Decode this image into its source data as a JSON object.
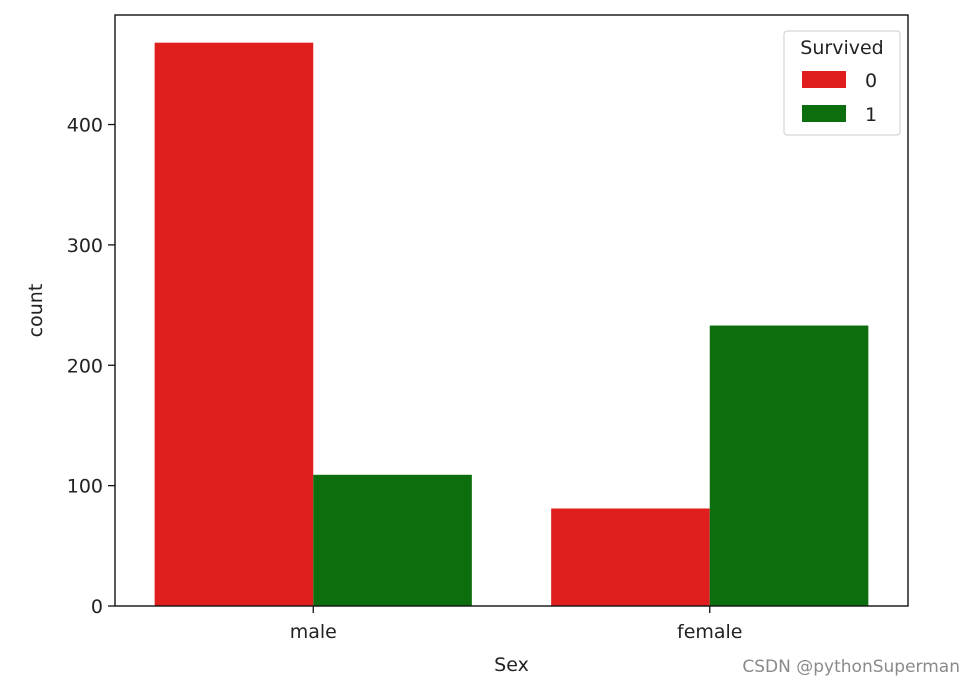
{
  "chart_data": {
    "type": "bar",
    "categories": [
      "male",
      "female"
    ],
    "series": [
      {
        "name": "0",
        "values": [
          468,
          81
        ],
        "color": "#e01e1e"
      },
      {
        "name": "1",
        "values": [
          109,
          233
        ],
        "color": "#0d6e0d"
      }
    ],
    "xlabel": "Sex",
    "ylabel": "count",
    "ylim": [
      0,
      491
    ],
    "yticks": [
      0,
      100,
      200,
      300,
      400
    ],
    "legend": {
      "title": "Survived",
      "placement": "top-right"
    },
    "grid": false
  },
  "watermark": "CSDN @pythonSuperman"
}
